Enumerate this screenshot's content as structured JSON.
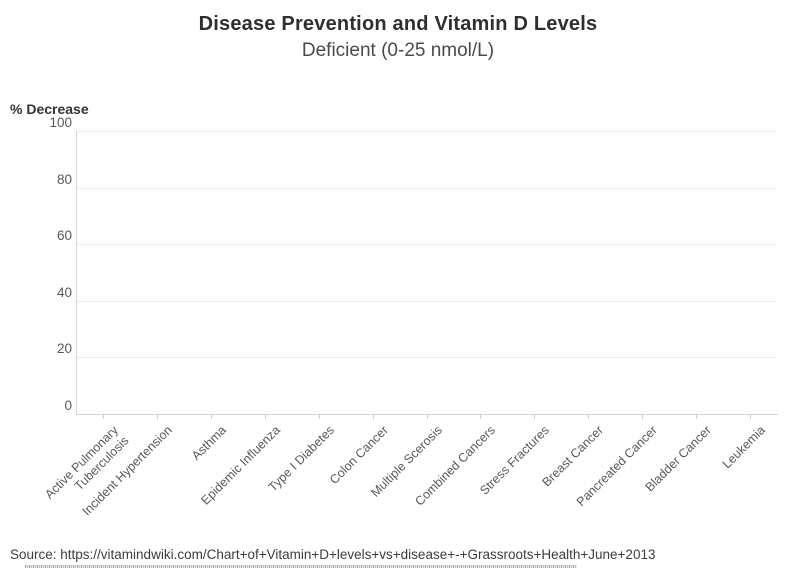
{
  "chart_data": {
    "type": "bar",
    "title": "Disease Prevention and Vitamin D Levels",
    "subtitle": "Deficient (0-25 nmol/L)",
    "ylabel": "% Decrease",
    "xlabel": "",
    "ylim": [
      0,
      100
    ],
    "yticks": [
      0,
      20,
      40,
      60,
      80,
      100
    ],
    "grid": "horizontal",
    "legend": "none",
    "categories": [
      "Active Pulmonary\nTuberculosis",
      "Incident Hypertension",
      "Asthma",
      "Epidemic Influenza",
      "Type I Diabetes",
      "Colon Cancer",
      "Multiple Scerosis",
      "Combined Cancers",
      "Stress Fractures",
      "Breast Cancer",
      "Pancreated Cancer",
      "Bladder Cancer",
      "Leukemia"
    ],
    "values": [
      0,
      0,
      0,
      0,
      0,
      0,
      0,
      0,
      0,
      0,
      0,
      0,
      0
    ]
  },
  "source_line": "Source: https://vitamindwiki.com/Chart+of+Vitamin+D+levels+vs+disease+-+Grassroots+Health+June+2013",
  "colors": {
    "gridline": "#ececec",
    "axis": "#d4d4d4",
    "tick": "#cfcfcf",
    "title_text": "#2f2f2f",
    "subtitle_text": "#4a4a4a",
    "axis_text": "#595959"
  }
}
